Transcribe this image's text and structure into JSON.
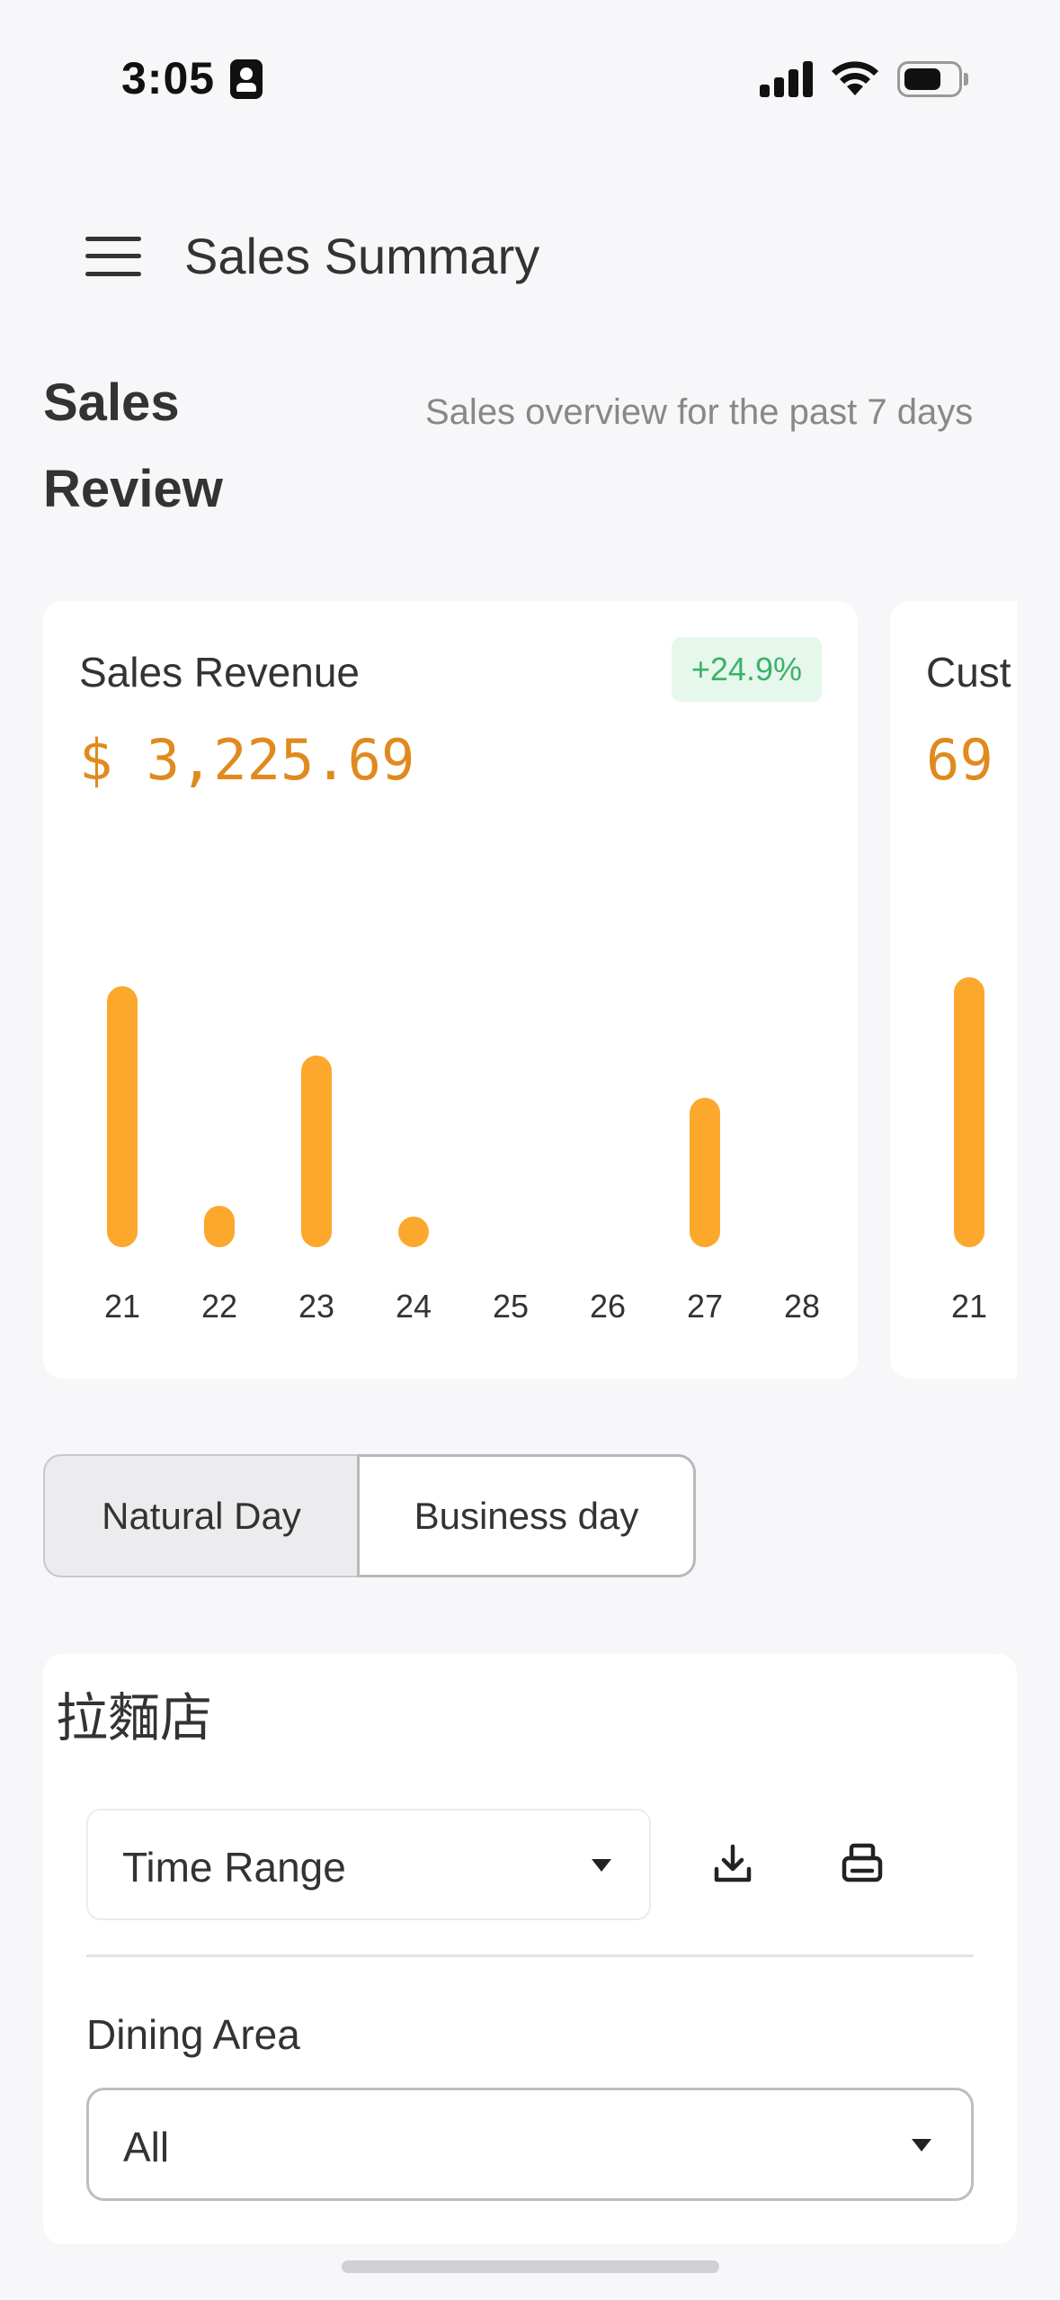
{
  "status_bar": {
    "time": "3:05"
  },
  "header": {
    "title": "Sales Summary"
  },
  "section": {
    "title": "Sales Review",
    "subtitle": "Sales overview for the past 7 days"
  },
  "cards": [
    {
      "title": "Sales Revenue",
      "delta": "+24.9%",
      "value": "$ 3,225.69",
      "chart_data": {
        "type": "bar",
        "categories": [
          "21",
          "22",
          "23",
          "24",
          "25",
          "26",
          "27",
          "28"
        ],
        "values": [
          300,
          48,
          220,
          35,
          0,
          0,
          172,
          0
        ],
        "xlabel": "",
        "ylabel": ""
      }
    },
    {
      "title": "Cust",
      "value": "69",
      "chart_data": {
        "type": "bar",
        "categories": [
          "21"
        ],
        "values": [
          310
        ]
      }
    }
  ],
  "toggle": {
    "natural_label": "Natural Day",
    "business_label": "Business day",
    "selected": "Business day"
  },
  "store": {
    "name": "拉麵店",
    "time_range_label": "Time Range",
    "dining_area_label": "Dining Area",
    "dining_area_value": "All"
  },
  "colors": {
    "accent": "#fba82c",
    "value_text": "#e08a1e",
    "positive": "#3bb36a"
  }
}
